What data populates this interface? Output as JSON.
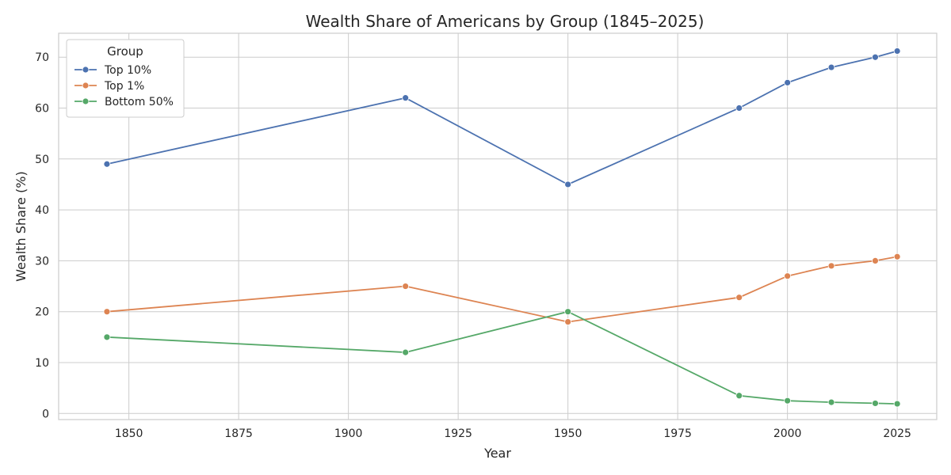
{
  "chart_data": {
    "type": "line",
    "title": "Wealth Share of Americans by Group (1845–2025)",
    "xlabel": "Year",
    "ylabel": "Wealth Share (%)",
    "xlim": [
      1834,
      2034
    ],
    "ylim": [
      -1.2,
      74.7
    ],
    "xticks": [
      1850,
      1875,
      1900,
      1925,
      1950,
      1975,
      2000,
      2025
    ],
    "yticks": [
      0,
      10,
      20,
      30,
      40,
      50,
      60,
      70
    ],
    "grid": true,
    "legend": {
      "title": "Group",
      "placement": "top-left"
    },
    "x": [
      1845,
      1913,
      1950,
      1989,
      2000,
      2010,
      2020,
      2025
    ],
    "series": [
      {
        "name": "Top 10%",
        "color": "#4c72b0",
        "values": [
          49,
          62,
          45,
          60,
          65,
          68,
          70,
          71.2
        ]
      },
      {
        "name": "Top 1%",
        "color": "#dd8452",
        "values": [
          20,
          25,
          18,
          22.8,
          27,
          29,
          30,
          30.8
        ]
      },
      {
        "name": "Bottom 50%",
        "color": "#55a868",
        "values": [
          15,
          12,
          20,
          3.5,
          2.5,
          2.2,
          2.0,
          1.9
        ]
      }
    ]
  }
}
